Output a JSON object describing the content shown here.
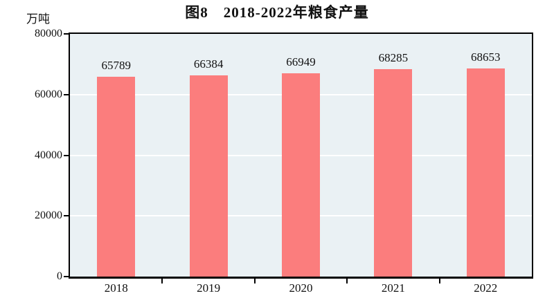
{
  "title": "图8　2018-2022年粮食产量",
  "unit_label": "万吨",
  "chart_data": {
    "type": "bar",
    "title": "图8　2018-2022年粮食产量",
    "xlabel": "",
    "ylabel": "万吨",
    "categories": [
      "2018",
      "2019",
      "2020",
      "2021",
      "2022"
    ],
    "values": [
      65789,
      66384,
      66949,
      68285,
      68653
    ],
    "data_labels": [
      "65789",
      "66384",
      "66949",
      "68285",
      "68653"
    ],
    "ylim": [
      0,
      80000
    ],
    "y_ticks": [
      0,
      20000,
      40000,
      60000,
      80000
    ],
    "grid": "horizontal white lines at y ticks",
    "legend": "none",
    "bar_color": "#FB7D7D",
    "plot_bg_color": "#EAF1F4",
    "grid_color": "#FFFFFF",
    "axis_color": "#000000",
    "text_color": "#111111"
  }
}
